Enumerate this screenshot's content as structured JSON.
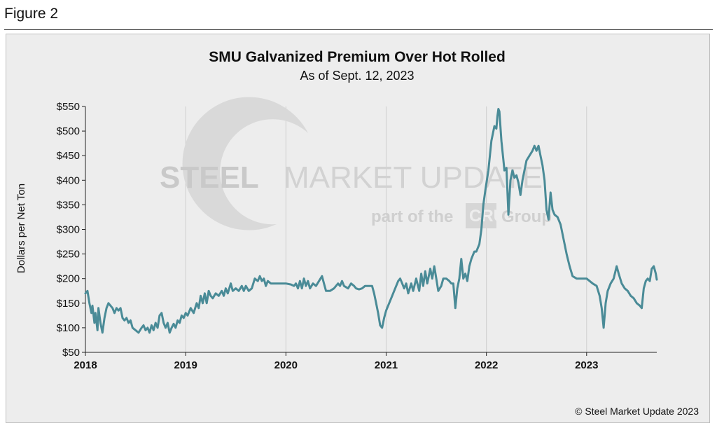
{
  "figure_label": "Figure 2",
  "watermark": {
    "brand_bold": "STEEL",
    "brand_light": "MARKET UPDATE",
    "tagline": "part of the",
    "group_badge": "CRU",
    "group_word": "Group"
  },
  "copyright": "© Steel Market Update 2023",
  "colors": {
    "line": "#4a8b97",
    "grid": "#cfcfcf",
    "panel": "#ededed"
  },
  "chart_data": {
    "type": "line",
    "title": "SMU Galvanized Premium Over Hot Rolled",
    "subtitle": "As of Sept. 12, 2023",
    "ylabel": "Dollars per Net Ton",
    "xlabel": "",
    "ylim": [
      50,
      550
    ],
    "xlim": [
      2018.0,
      2023.7
    ],
    "yticks": [
      50,
      100,
      150,
      200,
      250,
      300,
      350,
      400,
      450,
      500,
      550
    ],
    "ytick_labels": [
      "$50",
      "$100",
      "$150",
      "$200",
      "$250",
      "$300",
      "$350",
      "$400",
      "$450",
      "$500",
      "$550"
    ],
    "xticks": [
      2018,
      2019,
      2020,
      2021,
      2022,
      2023
    ],
    "xtick_labels": [
      "2018",
      "2019",
      "2020",
      "2021",
      "2022",
      "2023"
    ],
    "grid": "vertical",
    "series": [
      {
        "points": [
          [
            2018.0,
            170
          ],
          [
            2018.02,
            175
          ],
          [
            2018.04,
            150
          ],
          [
            2018.06,
            130
          ],
          [
            2018.07,
            145
          ],
          [
            2018.09,
            110
          ],
          [
            2018.1,
            130
          ],
          [
            2018.12,
            95
          ],
          [
            2018.13,
            140
          ],
          [
            2018.15,
            110
          ],
          [
            2018.17,
            90
          ],
          [
            2018.19,
            120
          ],
          [
            2018.21,
            140
          ],
          [
            2018.23,
            150
          ],
          [
            2018.25,
            145
          ],
          [
            2018.27,
            140
          ],
          [
            2018.29,
            130
          ],
          [
            2018.31,
            140
          ],
          [
            2018.33,
            135
          ],
          [
            2018.35,
            140
          ],
          [
            2018.37,
            120
          ],
          [
            2018.39,
            115
          ],
          [
            2018.41,
            120
          ],
          [
            2018.43,
            110
          ],
          [
            2018.45,
            115
          ],
          [
            2018.47,
            100
          ],
          [
            2018.5,
            95
          ],
          [
            2018.53,
            90
          ],
          [
            2018.56,
            100
          ],
          [
            2018.58,
            105
          ],
          [
            2018.6,
            95
          ],
          [
            2018.62,
            100
          ],
          [
            2018.64,
            90
          ],
          [
            2018.66,
            105
          ],
          [
            2018.68,
            95
          ],
          [
            2018.7,
            110
          ],
          [
            2018.72,
            100
          ],
          [
            2018.74,
            125
          ],
          [
            2018.76,
            130
          ],
          [
            2018.78,
            110
          ],
          [
            2018.8,
            100
          ],
          [
            2018.82,
            110
          ],
          [
            2018.84,
            90
          ],
          [
            2018.86,
            100
          ],
          [
            2018.88,
            108
          ],
          [
            2018.9,
            100
          ],
          [
            2018.92,
            115
          ],
          [
            2018.94,
            110
          ],
          [
            2018.96,
            125
          ],
          [
            2018.98,
            120
          ],
          [
            2019.0,
            130
          ],
          [
            2019.02,
            125
          ],
          [
            2019.05,
            140
          ],
          [
            2019.08,
            130
          ],
          [
            2019.11,
            150
          ],
          [
            2019.13,
            140
          ],
          [
            2019.15,
            165
          ],
          [
            2019.17,
            150
          ],
          [
            2019.19,
            170
          ],
          [
            2019.21,
            150
          ],
          [
            2019.23,
            175
          ],
          [
            2019.25,
            165
          ],
          [
            2019.27,
            160
          ],
          [
            2019.3,
            170
          ],
          [
            2019.33,
            165
          ],
          [
            2019.36,
            175
          ],
          [
            2019.38,
            165
          ],
          [
            2019.4,
            180
          ],
          [
            2019.42,
            170
          ],
          [
            2019.45,
            190
          ],
          [
            2019.47,
            175
          ],
          [
            2019.5,
            180
          ],
          [
            2019.53,
            175
          ],
          [
            2019.56,
            185
          ],
          [
            2019.58,
            175
          ],
          [
            2019.6,
            185
          ],
          [
            2019.63,
            175
          ],
          [
            2019.66,
            180
          ],
          [
            2019.69,
            200
          ],
          [
            2019.72,
            195
          ],
          [
            2019.74,
            205
          ],
          [
            2019.76,
            195
          ],
          [
            2019.78,
            200
          ],
          [
            2019.8,
            185
          ],
          [
            2019.82,
            195
          ],
          [
            2019.85,
            190
          ],
          [
            2019.9,
            190
          ],
          [
            2019.95,
            190
          ],
          [
            2020.0,
            190
          ],
          [
            2020.05,
            188
          ],
          [
            2020.08,
            185
          ],
          [
            2020.1,
            190
          ],
          [
            2020.12,
            180
          ],
          [
            2020.14,
            195
          ],
          [
            2020.16,
            180
          ],
          [
            2020.18,
            200
          ],
          [
            2020.2,
            185
          ],
          [
            2020.22,
            195
          ],
          [
            2020.24,
            180
          ],
          [
            2020.27,
            190
          ],
          [
            2020.3,
            185
          ],
          [
            2020.33,
            195
          ],
          [
            2020.36,
            205
          ],
          [
            2020.38,
            190
          ],
          [
            2020.4,
            175
          ],
          [
            2020.44,
            175
          ],
          [
            2020.48,
            180
          ],
          [
            2020.52,
            190
          ],
          [
            2020.54,
            185
          ],
          [
            2020.56,
            195
          ],
          [
            2020.58,
            185
          ],
          [
            2020.62,
            180
          ],
          [
            2020.65,
            190
          ],
          [
            2020.68,
            185
          ],
          [
            2020.7,
            180
          ],
          [
            2020.73,
            178
          ],
          [
            2020.76,
            180
          ],
          [
            2020.79,
            185
          ],
          [
            2020.82,
            185
          ],
          [
            2020.86,
            185
          ],
          [
            2020.88,
            170
          ],
          [
            2020.9,
            150
          ],
          [
            2020.92,
            130
          ],
          [
            2020.94,
            105
          ],
          [
            2020.96,
            100
          ],
          [
            2020.98,
            120
          ],
          [
            2021.0,
            135
          ],
          [
            2021.03,
            150
          ],
          [
            2021.06,
            165
          ],
          [
            2021.09,
            180
          ],
          [
            2021.12,
            195
          ],
          [
            2021.14,
            200
          ],
          [
            2021.16,
            190
          ],
          [
            2021.18,
            180
          ],
          [
            2021.2,
            190
          ],
          [
            2021.22,
            170
          ],
          [
            2021.25,
            190
          ],
          [
            2021.27,
            175
          ],
          [
            2021.3,
            200
          ],
          [
            2021.33,
            175
          ],
          [
            2021.35,
            210
          ],
          [
            2021.37,
            185
          ],
          [
            2021.39,
            215
          ],
          [
            2021.41,
            190
          ],
          [
            2021.44,
            220
          ],
          [
            2021.46,
            200
          ],
          [
            2021.48,
            225
          ],
          [
            2021.5,
            200
          ],
          [
            2021.52,
            175
          ],
          [
            2021.55,
            185
          ],
          [
            2021.57,
            200
          ],
          [
            2021.6,
            200
          ],
          [
            2021.63,
            195
          ],
          [
            2021.65,
            190
          ],
          [
            2021.67,
            190
          ],
          [
            2021.69,
            140
          ],
          [
            2021.71,
            180
          ],
          [
            2021.73,
            200
          ],
          [
            2021.75,
            240
          ],
          [
            2021.77,
            200
          ],
          [
            2021.79,
            210
          ],
          [
            2021.81,
            195
          ],
          [
            2021.83,
            225
          ],
          [
            2021.85,
            240
          ],
          [
            2021.88,
            255
          ],
          [
            2021.9,
            255
          ],
          [
            2021.93,
            270
          ],
          [
            2021.95,
            300
          ],
          [
            2021.97,
            350
          ],
          [
            2021.99,
            380
          ],
          [
            2022.02,
            420
          ],
          [
            2022.05,
            480
          ],
          [
            2022.08,
            510
          ],
          [
            2022.1,
            505
          ],
          [
            2022.11,
            530
          ],
          [
            2022.12,
            545
          ],
          [
            2022.13,
            540
          ],
          [
            2022.15,
            480
          ],
          [
            2022.17,
            440
          ],
          [
            2022.18,
            420
          ],
          [
            2022.2,
            425
          ],
          [
            2022.22,
            330
          ],
          [
            2022.24,
            400
          ],
          [
            2022.26,
            420
          ],
          [
            2022.28,
            405
          ],
          [
            2022.3,
            410
          ],
          [
            2022.32,
            395
          ],
          [
            2022.34,
            370
          ],
          [
            2022.36,
            400
          ],
          [
            2022.38,
            420
          ],
          [
            2022.4,
            440
          ],
          [
            2022.43,
            450
          ],
          [
            2022.46,
            460
          ],
          [
            2022.48,
            470
          ],
          [
            2022.5,
            460
          ],
          [
            2022.52,
            470
          ],
          [
            2022.54,
            450
          ],
          [
            2022.56,
            430
          ],
          [
            2022.58,
            400
          ],
          [
            2022.6,
            340
          ],
          [
            2022.62,
            320
          ],
          [
            2022.64,
            375
          ],
          [
            2022.66,
            340
          ],
          [
            2022.68,
            330
          ],
          [
            2022.71,
            325
          ],
          [
            2022.74,
            310
          ],
          [
            2022.77,
            280
          ],
          [
            2022.8,
            250
          ],
          [
            2022.83,
            225
          ],
          [
            2022.86,
            205
          ],
          [
            2022.9,
            200
          ],
          [
            2022.95,
            200
          ],
          [
            2023.0,
            200
          ],
          [
            2023.03,
            195
          ],
          [
            2023.06,
            190
          ],
          [
            2023.1,
            185
          ],
          [
            2023.13,
            165
          ],
          [
            2023.15,
            140
          ],
          [
            2023.17,
            100
          ],
          [
            2023.19,
            150
          ],
          [
            2023.21,
            175
          ],
          [
            2023.24,
            190
          ],
          [
            2023.27,
            200
          ],
          [
            2023.3,
            225
          ],
          [
            2023.32,
            210
          ],
          [
            2023.35,
            190
          ],
          [
            2023.38,
            180
          ],
          [
            2023.41,
            175
          ],
          [
            2023.44,
            165
          ],
          [
            2023.47,
            160
          ],
          [
            2023.5,
            150
          ],
          [
            2023.53,
            145
          ],
          [
            2023.55,
            140
          ],
          [
            2023.57,
            180
          ],
          [
            2023.59,
            195
          ],
          [
            2023.61,
            200
          ],
          [
            2023.63,
            195
          ],
          [
            2023.65,
            220
          ],
          [
            2023.67,
            225
          ],
          [
            2023.69,
            210
          ],
          [
            2023.7,
            198
          ]
        ]
      }
    ]
  }
}
